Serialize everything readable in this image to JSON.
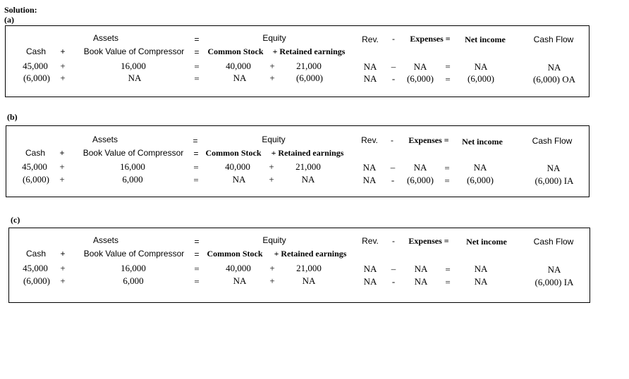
{
  "heading": "Solution:",
  "panels": [
    {
      "label": "(a)",
      "header": {
        "assets": "Assets",
        "eq1": "=",
        "equity": "Equity",
        "rev": "Rev.",
        "minus": "-",
        "expenses": "Expenses =",
        "net_income": "Net income",
        "cash_flow": "Cash Flow",
        "cash": "Cash",
        "plus1": "+",
        "book_value": "Book Value of Compressor",
        "eq2": "=",
        "common_stock": "Common Stock",
        "plus2": "+ Retained earnings"
      },
      "rows": [
        {
          "cash": "45,000",
          "op1": "+",
          "book": "16,000",
          "eq": "=",
          "stock": "40,000",
          "op2": "+",
          "retained": "21,000",
          "rev": "NA",
          "minus": "–",
          "expenses": "NA",
          "eq2": "=",
          "net": "NA",
          "flow": "NA"
        },
        {
          "cash": "(6,000)",
          "op1": "+",
          "book": "NA",
          "eq": "=",
          "stock": "NA",
          "op2": "+",
          "retained": "(6,000)",
          "rev": "NA",
          "minus": "-",
          "expenses": "(6,000)",
          "eq2": "=",
          "net": "(6,000)",
          "flow": "(6,000) OA"
        }
      ]
    },
    {
      "label": "(b)",
      "header": {
        "assets": "Assets",
        "eq1": "=",
        "equity": "Equity",
        "rev": "Rev.",
        "minus": "-",
        "expenses": "Expenses =",
        "net_income": "Net income",
        "cash_flow": "Cash Flow",
        "cash": "Cash",
        "plus1": "+",
        "book_value": "Book Value of Compressor",
        "eq2": "=",
        "common_stock": "Common Stock",
        "plus2": "+ Retained earnings"
      },
      "rows": [
        {
          "cash": "45,000",
          "op1": "+",
          "book": "16,000",
          "eq": "=",
          "stock": "40,000",
          "op2": "+",
          "retained": "21,000",
          "rev": "NA",
          "minus": "–",
          "expenses": "NA",
          "eq2": "=",
          "net": "NA",
          "flow": "NA"
        },
        {
          "cash": "(6,000)",
          "op1": "+",
          "book": "6,000",
          "eq": "=",
          "stock": "NA",
          "op2": "+",
          "retained": "NA",
          "rev": "NA",
          "minus": "-",
          "expenses": "(6,000)",
          "eq2": "=",
          "net": "(6,000)",
          "flow": "(6,000) IA"
        }
      ]
    },
    {
      "label": "(c)",
      "header": {
        "assets": "Assets",
        "eq1": "=",
        "equity": "Equity",
        "rev": "Rev.",
        "minus": "-",
        "expenses": "Expenses =",
        "net_income": "Net income",
        "cash_flow": "Cash Flow",
        "cash": "Cash",
        "plus1": "+",
        "book_value": "Book Value of Compressor",
        "eq2": "=",
        "common_stock": "Common Stock",
        "plus2": "+ Retained earnings"
      },
      "rows": [
        {
          "cash": "45,000",
          "op1": "+",
          "book": "16,000",
          "eq": "=",
          "stock": "40,000",
          "op2": "+",
          "retained": "21,000",
          "rev": "NA",
          "minus": "–",
          "expenses": "NA",
          "eq2": "=",
          "net": "NA",
          "flow": "NA"
        },
        {
          "cash": "(6,000)",
          "op1": "+",
          "book": "6,000",
          "eq": "=",
          "stock": "NA",
          "op2": "+",
          "retained": "NA",
          "rev": "NA",
          "minus": "-",
          "expenses": "NA",
          "eq2": "=",
          "net": "NA",
          "flow": "(6,000) IA"
        }
      ]
    }
  ]
}
